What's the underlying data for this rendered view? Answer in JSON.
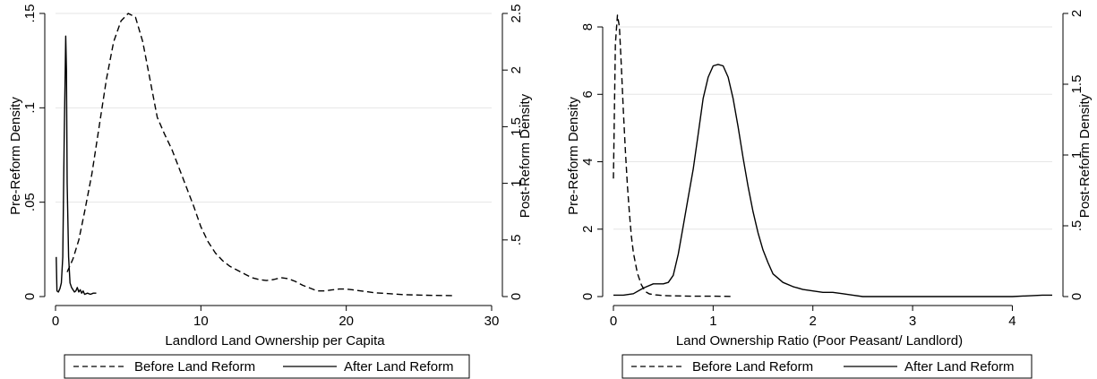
{
  "chart_data": [
    {
      "type": "line",
      "xlabel": "Landlord Land Ownership per Capita",
      "ylabel_left": "Pre-Reform Density",
      "ylabel_right": "Post-Reform Density",
      "xlim": [
        0,
        30
      ],
      "ylim_left": [
        0,
        0.15
      ],
      "ylim_right": [
        0,
        2.5
      ],
      "x_ticks": [
        "0",
        "10",
        "20",
        "30"
      ],
      "x_tick_values": [
        0,
        10,
        20,
        30
      ],
      "y_left_ticks": [
        "0",
        ".05",
        ".1",
        ".15"
      ],
      "y_left_tick_values": [
        0,
        0.05,
        0.1,
        0.15
      ],
      "y_right_ticks": [
        "0",
        ".5",
        "1",
        "1.5",
        "2",
        "2.5"
      ],
      "y_right_tick_values": [
        0,
        0.5,
        1,
        1.5,
        2,
        2.5
      ],
      "grid": true,
      "legend_position": "bottom",
      "series": [
        {
          "name": "Before Land Reform",
          "style": "dashed",
          "axis": "left",
          "x": [
            0.8,
            1.2,
            1.6,
            2.0,
            2.5,
            3.0,
            3.5,
            4.0,
            4.5,
            5.0,
            5.5,
            6.0,
            6.5,
            7.0,
            7.5,
            8.0,
            8.5,
            9.0,
            9.5,
            10.0,
            10.5,
            11.0,
            11.5,
            12.0,
            12.5,
            13.0,
            13.5,
            14.0,
            14.5,
            15.0,
            15.5,
            16.0,
            16.5,
            17.0,
            17.5,
            18.0,
            18.5,
            19.0,
            19.5,
            20.0,
            20.5,
            21.0,
            22.0,
            23.0,
            24.0,
            25.0,
            26.0,
            27.3
          ],
          "y": [
            0.013,
            0.02,
            0.03,
            0.045,
            0.065,
            0.09,
            0.115,
            0.135,
            0.146,
            0.15,
            0.148,
            0.135,
            0.115,
            0.095,
            0.086,
            0.078,
            0.068,
            0.058,
            0.048,
            0.037,
            0.029,
            0.023,
            0.019,
            0.016,
            0.014,
            0.012,
            0.01,
            0.009,
            0.0085,
            0.009,
            0.01,
            0.0095,
            0.008,
            0.006,
            0.0045,
            0.003,
            0.003,
            0.0035,
            0.004,
            0.004,
            0.0035,
            0.003,
            0.002,
            0.0015,
            0.001,
            0.0008,
            0.0006,
            0.0005
          ]
        },
        {
          "name": "After Land Reform",
          "style": "solid",
          "axis": "right",
          "x": [
            0.05,
            0.1,
            0.2,
            0.3,
            0.4,
            0.5,
            0.6,
            0.7,
            0.75,
            0.8,
            0.9,
            1.0,
            1.1,
            1.2,
            1.3,
            1.4,
            1.5,
            1.6,
            1.7,
            1.8,
            1.9,
            2.0,
            2.2,
            2.4,
            2.6,
            2.8
          ],
          "y": [
            0.35,
            0.05,
            0.04,
            0.07,
            0.12,
            0.35,
            1.4,
            2.3,
            2.0,
            1.0,
            0.35,
            0.12,
            0.08,
            0.06,
            0.04,
            0.05,
            0.08,
            0.04,
            0.06,
            0.03,
            0.05,
            0.02,
            0.03,
            0.02,
            0.03,
            0.03
          ]
        }
      ]
    },
    {
      "type": "line",
      "xlabel": "Land Ownership Ratio (Poor Peasant/ Landlord)",
      "ylabel_left": "Pre-Reform Density",
      "ylabel_right": "Post-Reform Density",
      "xlim": [
        0,
        4.4
      ],
      "ylim_left": [
        0,
        8.4
      ],
      "ylim_right": [
        0,
        2.0
      ],
      "x_ticks": [
        "0",
        "1",
        "2",
        "3",
        "4"
      ],
      "x_tick_values": [
        0,
        1,
        2,
        3,
        4
      ],
      "y_left_ticks": [
        "0",
        "2",
        "4",
        "6",
        "8"
      ],
      "y_left_tick_values": [
        0,
        2,
        4,
        6,
        8
      ],
      "y_right_ticks": [
        "0",
        ".5",
        "1",
        "1.5",
        "2"
      ],
      "y_right_tick_values": [
        0,
        0.5,
        1,
        1.5,
        2
      ],
      "grid": true,
      "legend_position": "bottom",
      "series": [
        {
          "name": "Before Land Reform",
          "style": "dashed",
          "axis": "left",
          "x": [
            0.0,
            0.02,
            0.04,
            0.06,
            0.08,
            0.1,
            0.12,
            0.14,
            0.16,
            0.18,
            0.2,
            0.24,
            0.28,
            0.32,
            0.36,
            0.42,
            0.5,
            0.6,
            0.8,
            1.0,
            1.2
          ],
          "y": [
            3.5,
            7.5,
            8.35,
            8.0,
            6.8,
            5.5,
            4.3,
            3.3,
            2.5,
            1.8,
            1.3,
            0.7,
            0.35,
            0.15,
            0.08,
            0.05,
            0.03,
            0.02,
            0.01,
            0.01,
            0.005
          ]
        },
        {
          "name": "After Land Reform",
          "style": "solid",
          "axis": "right",
          "x": [
            0.0,
            0.1,
            0.2,
            0.3,
            0.4,
            0.5,
            0.55,
            0.6,
            0.65,
            0.7,
            0.75,
            0.8,
            0.85,
            0.9,
            0.95,
            1.0,
            1.05,
            1.1,
            1.15,
            1.2,
            1.25,
            1.3,
            1.35,
            1.4,
            1.45,
            1.5,
            1.55,
            1.6,
            1.7,
            1.8,
            1.9,
            2.0,
            2.1,
            2.2,
            2.3,
            2.4,
            2.5,
            2.6,
            3.0,
            3.5,
            4.0,
            4.3,
            4.4
          ],
          "y": [
            0.01,
            0.01,
            0.02,
            0.06,
            0.09,
            0.09,
            0.1,
            0.15,
            0.3,
            0.5,
            0.7,
            0.9,
            1.15,
            1.4,
            1.55,
            1.63,
            1.64,
            1.63,
            1.55,
            1.4,
            1.2,
            0.98,
            0.78,
            0.6,
            0.45,
            0.33,
            0.24,
            0.16,
            0.1,
            0.07,
            0.05,
            0.04,
            0.03,
            0.03,
            0.02,
            0.01,
            0.0,
            0.0,
            0.0,
            0.0,
            0.0,
            0.01,
            0.01
          ]
        }
      ]
    }
  ],
  "legend": {
    "before_label": "Before Land Reform",
    "after_label": "After Land Reform"
  }
}
